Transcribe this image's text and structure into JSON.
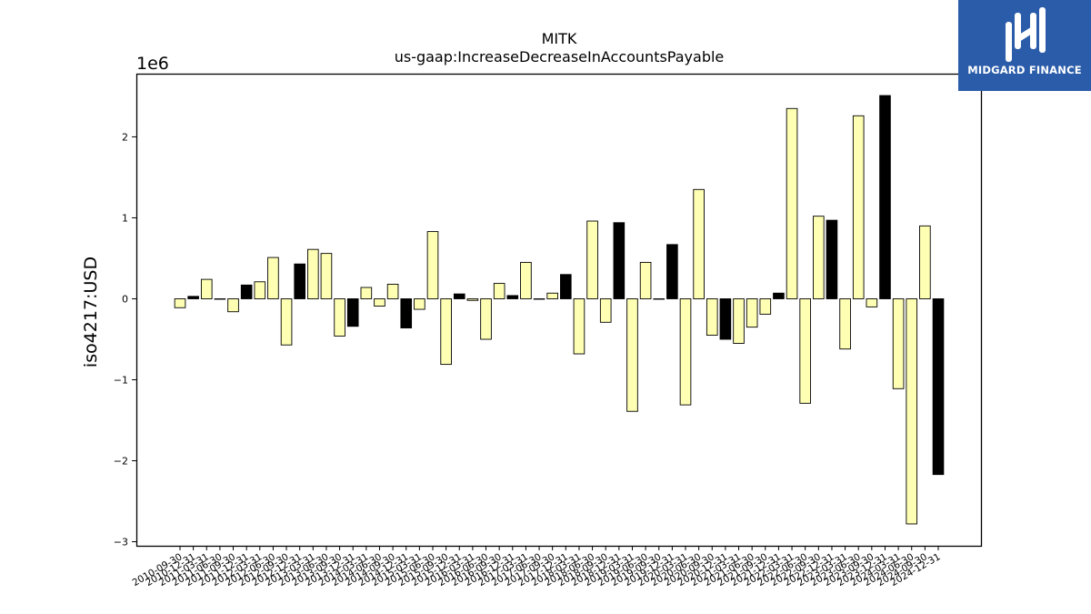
{
  "chart_data": {
    "type": "bar",
    "title": "MITK",
    "subtitle": "us-gaap:IncreaseDecreaseInAccountsPayable",
    "ylabel": "iso4217:USD",
    "xlabel": "",
    "y_multiplier_label": "1e6",
    "ylim": [
      -3050000,
      2780000
    ],
    "yticks": [
      -3000000,
      -2000000,
      -1000000,
      0,
      1000000,
      2000000
    ],
    "ytick_labels": [
      "−3",
      "−2",
      "−1",
      "0",
      "1",
      "2"
    ],
    "grid": false,
    "legend": "none",
    "colors": {
      "quarter": "#ffffb4",
      "year_end": "#000000",
      "edge": "#000000"
    },
    "categories": [
      "2010-09-30",
      "2010-12-31",
      "2011-03-31",
      "2011-06-30",
      "2011-09-30",
      "2011-12-31",
      "2012-03-31",
      "2012-06-30",
      "2012-09-30",
      "2012-12-31",
      "2013-03-31",
      "2013-06-30",
      "2013-09-30",
      "2013-12-31",
      "2014-03-31",
      "2014-06-30",
      "2014-09-30",
      "2014-12-31",
      "2015-03-31",
      "2015-06-30",
      "2015-09-30",
      "2015-12-31",
      "2016-03-31",
      "2016-06-30",
      "2016-09-30",
      "2016-12-31",
      "2017-03-31",
      "2017-06-30",
      "2017-09-30",
      "2017-12-31",
      "2018-03-31",
      "2018-06-30",
      "2018-09-30",
      "2018-12-31",
      "2019-03-31",
      "2019-06-30",
      "2019-09-30",
      "2019-12-31",
      "2020-03-31",
      "2020-06-30",
      "2020-09-30",
      "2020-12-31",
      "2021-03-31",
      "2021-06-30",
      "2021-09-30",
      "2021-12-31",
      "2022-03-31",
      "2022-06-30",
      "2022-09-30",
      "2022-12-31",
      "2023-03-31",
      "2023-06-30",
      "2023-09-30",
      "2023-12-31",
      "2024-03-31",
      "2024-06-30",
      "2024-09-30",
      "2024-12-31"
    ],
    "values": [
      -110000,
      30000,
      240000,
      0,
      -160000,
      170000,
      210000,
      510000,
      -570000,
      430000,
      610000,
      560000,
      -460000,
      -340000,
      140000,
      -90000,
      180000,
      -360000,
      -130000,
      830000,
      -810000,
      60000,
      -20000,
      -500000,
      190000,
      40000,
      450000,
      0,
      70000,
      300000,
      -680000,
      960000,
      -290000,
      940000,
      -1390000,
      450000,
      0,
      670000,
      -1310000,
      1350000,
      -450000,
      -500000,
      -550000,
      -350000,
      -190000,
      70000,
      2350000,
      -1290000,
      1020000,
      970000,
      -620000,
      2260000,
      -100000,
      2510000,
      -1110000,
      -2780000,
      900000,
      -2170000
    ],
    "year_end": [
      false,
      true,
      false,
      false,
      false,
      true,
      false,
      false,
      false,
      true,
      false,
      false,
      false,
      true,
      false,
      false,
      false,
      true,
      false,
      false,
      false,
      true,
      false,
      false,
      false,
      true,
      false,
      false,
      false,
      true,
      false,
      false,
      false,
      true,
      false,
      false,
      false,
      true,
      false,
      false,
      false,
      true,
      false,
      false,
      false,
      true,
      false,
      false,
      false,
      true,
      false,
      false,
      false,
      true,
      false,
      false,
      false,
      true
    ]
  },
  "logo": {
    "text": "MIDGARD FINANCE"
  }
}
